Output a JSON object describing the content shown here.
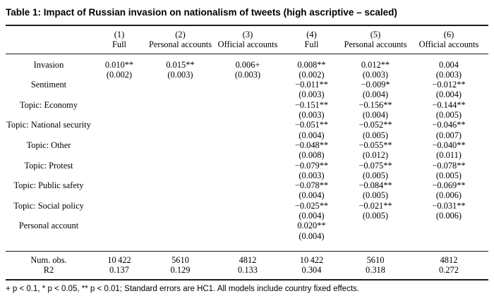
{
  "table": {
    "title": "Table 1: Impact of Russian invasion on nationalism of tweets (high ascriptive – scaled)",
    "column_numbers": [
      "(1)",
      "(2)",
      "(3)",
      "(4)",
      "(5)",
      "(6)"
    ],
    "column_labels": [
      "Full",
      "Personal accounts",
      "Official accounts",
      "Full",
      "Personal accounts",
      "Official accounts"
    ],
    "coefficients": [
      {
        "label": "Invasion",
        "estimates": [
          "0.010**",
          "0.015**",
          "0.006+",
          "0.008**",
          "0.012**",
          "0.004"
        ],
        "std_errors": [
          "(0.002)",
          "(0.003)",
          "(0.003)",
          "(0.002)",
          "(0.003)",
          "(0.003)"
        ]
      },
      {
        "label": "Sentiment",
        "estimates": [
          "",
          "",
          "",
          "−0.011**",
          "−0.009*",
          "−0.012**"
        ],
        "std_errors": [
          "",
          "",
          "",
          "(0.003)",
          "(0.004)",
          "(0.004)"
        ]
      },
      {
        "label": "Topic: Economy",
        "estimates": [
          "",
          "",
          "",
          "−0.151**",
          "−0.156**",
          "−0.144**"
        ],
        "std_errors": [
          "",
          "",
          "",
          "(0.003)",
          "(0.004)",
          "(0.005)"
        ]
      },
      {
        "label": "Topic: National security",
        "estimates": [
          "",
          "",
          "",
          "−0.051**",
          "−0.052**",
          "−0.046**"
        ],
        "std_errors": [
          "",
          "",
          "",
          "(0.004)",
          "(0.005)",
          "(0.007)"
        ]
      },
      {
        "label": "Topic: Other",
        "estimates": [
          "",
          "",
          "",
          "−0.048**",
          "−0.055**",
          "−0.040**"
        ],
        "std_errors": [
          "",
          "",
          "",
          "(0.008)",
          "(0.012)",
          "(0.011)"
        ]
      },
      {
        "label": "Topic: Protest",
        "estimates": [
          "",
          "",
          "",
          "−0.079**",
          "−0.075**",
          "−0.078**"
        ],
        "std_errors": [
          "",
          "",
          "",
          "(0.003)",
          "(0.005)",
          "(0.005)"
        ]
      },
      {
        "label": "Topic: Public safety",
        "estimates": [
          "",
          "",
          "",
          "−0.078**",
          "−0.084**",
          "−0.069**"
        ],
        "std_errors": [
          "",
          "",
          "",
          "(0.004)",
          "(0.005)",
          "(0.006)"
        ]
      },
      {
        "label": "Topic: Social policy",
        "estimates": [
          "",
          "",
          "",
          "−0.025**",
          "−0.021**",
          "−0.031**"
        ],
        "std_errors": [
          "",
          "",
          "",
          "(0.004)",
          "(0.005)",
          "(0.006)"
        ]
      },
      {
        "label": "Personal account",
        "estimates": [
          "",
          "",
          "",
          "0.020**",
          "",
          ""
        ],
        "std_errors": [
          "",
          "",
          "",
          "(0.004)",
          "",
          ""
        ]
      }
    ],
    "fit_stats": [
      {
        "label": "Num. obs.",
        "values": [
          "10 422",
          "5610",
          "4812",
          "10 422",
          "5610",
          "4812"
        ]
      },
      {
        "label": "R2",
        "values": [
          "0.137",
          "0.129",
          "0.133",
          "0.304",
          "0.318",
          "0.272"
        ]
      }
    ],
    "footnote": "+ p < 0.1, * p < 0.05, ** p < 0.01; Standard errors are HC1. All models include country fixed effects."
  }
}
